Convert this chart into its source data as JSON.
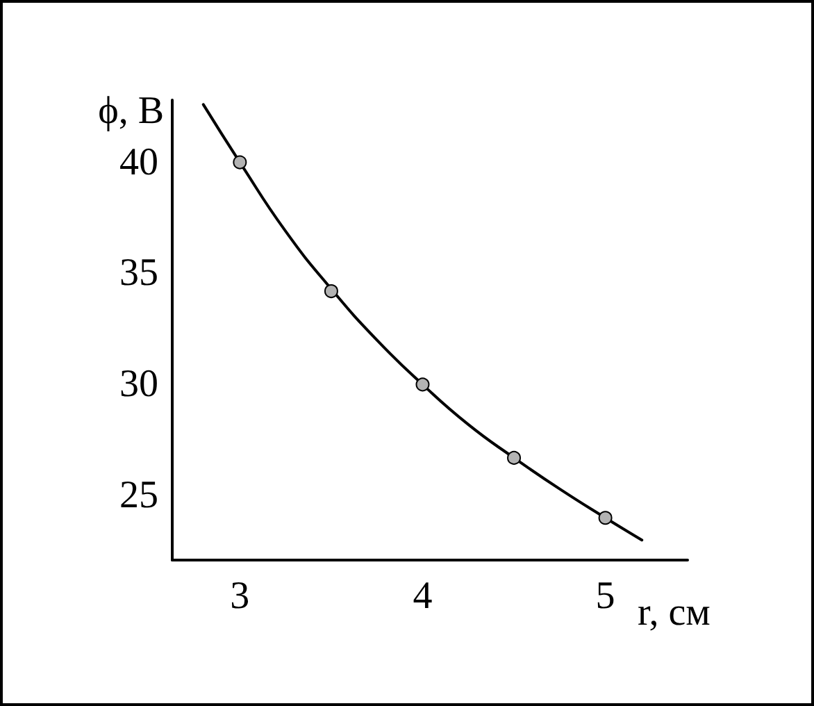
{
  "chart_data": {
    "type": "line",
    "xlabel": "r, см",
    "ylabel": "ϕ, В",
    "xlim": [
      2.63,
      5.45
    ],
    "ylim": [
      22.1,
      42.8
    ],
    "xticks": [
      3,
      4,
      5
    ],
    "yticks": [
      25,
      30,
      35,
      40
    ],
    "grid": false,
    "series": [
      {
        "color": "#000000",
        "marker": "none",
        "line_style": "solid",
        "x": [
          2.8,
          3,
          3.25,
          3.5,
          3.75,
          4,
          4.25,
          4.5,
          4.75,
          5,
          5.2
        ],
        "values": [
          42.6,
          40,
          36.9,
          34.3,
          32,
          30,
          28.2,
          26.7,
          25.3,
          24,
          23.0
        ]
      },
      {
        "type": "scatter",
        "color": "#b3b3b3",
        "marker": "circle",
        "x": [
          3,
          3.5,
          4,
          4.5,
          5
        ],
        "values": [
          40,
          34.2,
          30,
          26.7,
          24
        ]
      }
    ]
  }
}
